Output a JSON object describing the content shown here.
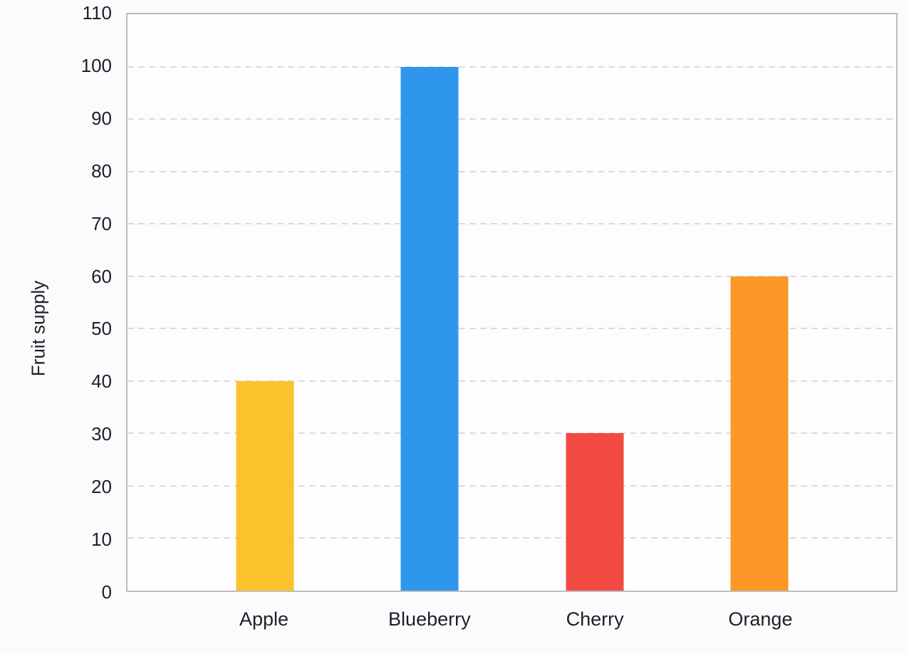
{
  "chart_data": {
    "type": "bar",
    "title": "",
    "xlabel": "",
    "ylabel": "Fruit supply",
    "categories": [
      "Apple",
      "Blueberry",
      "Cherry",
      "Orange"
    ],
    "values": [
      40,
      100,
      30,
      60
    ],
    "bar_colors": [
      "#FCC22E",
      "#2E96ED",
      "#F24942",
      "#FB9827"
    ],
    "ylim": [
      0,
      110
    ],
    "yticks": [
      0,
      10,
      20,
      30,
      40,
      50,
      60,
      70,
      80,
      90,
      100,
      110
    ],
    "grid": "horizontal-dashed",
    "legend_position": "none",
    "style": {
      "grid_color": "#dbdbdb",
      "axis_border_color": "#bdbdc1",
      "text_color": "#1d2025",
      "plot_background": "#fdfdff",
      "page_background": "#fbfbfd"
    }
  }
}
